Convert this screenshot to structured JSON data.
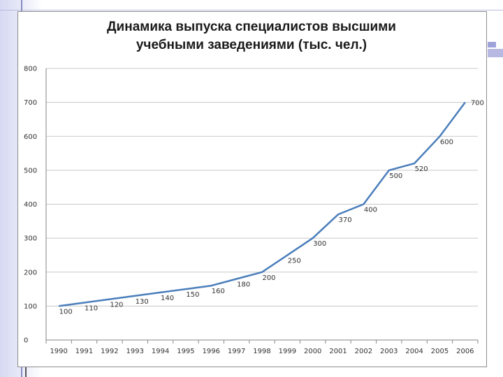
{
  "chart_data": {
    "type": "line",
    "title_line1": "Динамика выпуска специалистов высшими",
    "title_line2": "учебными заведениями (тыс. чел.)",
    "xlabel": "",
    "ylabel": "",
    "ylim": [
      0,
      800
    ],
    "yticks": [
      0,
      100,
      200,
      300,
      400,
      500,
      600,
      700,
      800
    ],
    "grid": true,
    "legend": "none",
    "categories": [
      "1990",
      "1991",
      "1992",
      "1993",
      "1994",
      "1995",
      "1996",
      "1997",
      "1998",
      "1999",
      "2000",
      "2001",
      "2002",
      "2003",
      "2004",
      "2005",
      "2006"
    ],
    "series": [
      {
        "values": [
          100,
          110,
          120,
          130,
          140,
          150,
          160,
          180,
          200,
          250,
          300,
          370,
          400,
          500,
          520,
          600,
          700
        ],
        "color": "#4a7ebb"
      }
    ]
  }
}
